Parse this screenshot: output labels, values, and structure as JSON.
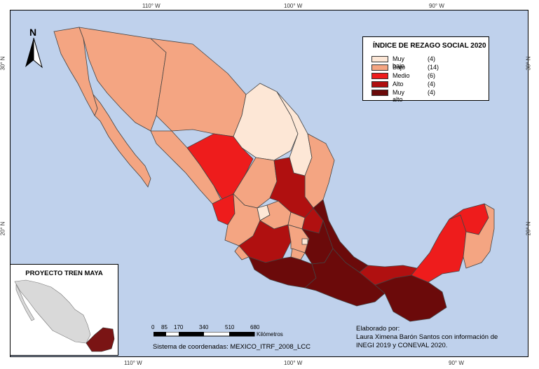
{
  "map": {
    "legend": {
      "title": "ÍNDICE DE REZAGO SOCIAL 2020",
      "classes": [
        {
          "label": "Muy bajo",
          "count": "(4)",
          "color": "#fde7d6"
        },
        {
          "label": "Bajo",
          "count": "(14)",
          "color": "#f4a582"
        },
        {
          "label": "Medio",
          "count": "(6)",
          "color": "#ee1c1c"
        },
        {
          "label": "Alto",
          "count": "(4)",
          "color": "#b01010"
        },
        {
          "label": "Muy alto",
          "count": "(4)",
          "color": "#6b0a0a"
        }
      ]
    },
    "graticule": {
      "top": [
        "110° W",
        "100° W",
        "90° W"
      ],
      "bottom": [
        "110° W",
        "100° W",
        "90° W"
      ],
      "left": [
        "30° N",
        "20° N"
      ],
      "right": [
        "30° N",
        "20° N"
      ]
    },
    "north_label": "N",
    "inset": {
      "title": "PROYECTO TREN MAYA",
      "highlight_color": "#7a1414"
    },
    "scale_bar": {
      "ticks": [
        "0",
        "85",
        "170",
        "340",
        "510",
        "680"
      ],
      "unit": "Kilómetros"
    },
    "crs": "Sistema de coordenadas: MEXICO_ITRF_2008_LCC",
    "credit": [
      "Elaborado por:",
      "Laura Ximena Barón Santos con información de",
      "INEGI 2019 y CONEVAL 2020."
    ],
    "ocean_color": "#bfd1ec"
  }
}
